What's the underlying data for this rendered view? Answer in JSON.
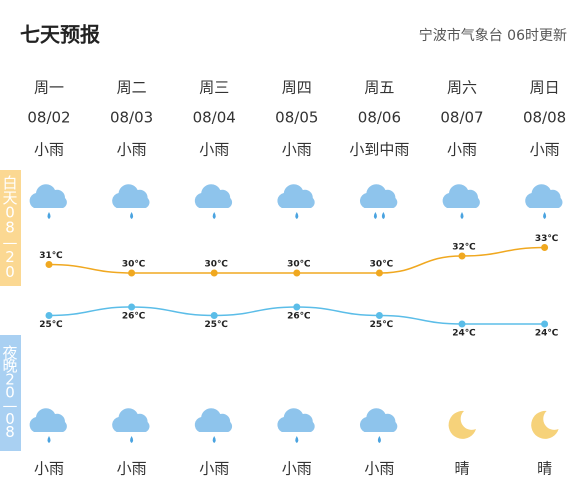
{
  "header": {
    "title": "七天预报",
    "source": "宁波市气象台 06时更新"
  },
  "day_label": "白天08—20",
  "night_label": "夜晚20—08",
  "days": [
    {
      "weekday": "周一",
      "date": "08/02",
      "day_weather": "小雨",
      "night_weather": "小雨"
    },
    {
      "weekday": "周二",
      "date": "08/03",
      "day_weather": "小雨",
      "night_weather": "小雨"
    },
    {
      "weekday": "周三",
      "date": "08/04",
      "day_weather": "小雨",
      "night_weather": "小雨"
    },
    {
      "weekday": "周四",
      "date": "08/05",
      "day_weather": "小雨",
      "night_weather": "小雨"
    },
    {
      "weekday": "周五",
      "date": "08/06",
      "day_weather": "小到中雨",
      "night_weather": "小雨"
    },
    {
      "weekday": "周六",
      "date": "08/07",
      "day_weather": "小雨",
      "night_weather": "晴"
    },
    {
      "weekday": "周日",
      "date": "08/08",
      "day_weather": "小雨",
      "night_weather": "晴"
    }
  ],
  "chart_data": {
    "type": "line",
    "series": [
      {
        "color": "#f0a820",
        "values": [
          31,
          30,
          30,
          30,
          30,
          32,
          33
        ],
        "value_labels": [
          "31℃",
          "30℃",
          "30℃",
          "30℃",
          "30℃",
          "32℃",
          "33℃"
        ]
      },
      {
        "color": "#5bbde8",
        "values": [
          25,
          26,
          25,
          26,
          25,
          24,
          24
        ],
        "value_labels": [
          "25℃",
          "26℃",
          "25℃",
          "26℃",
          "25℃",
          "24℃",
          "24℃"
        ]
      }
    ]
  }
}
